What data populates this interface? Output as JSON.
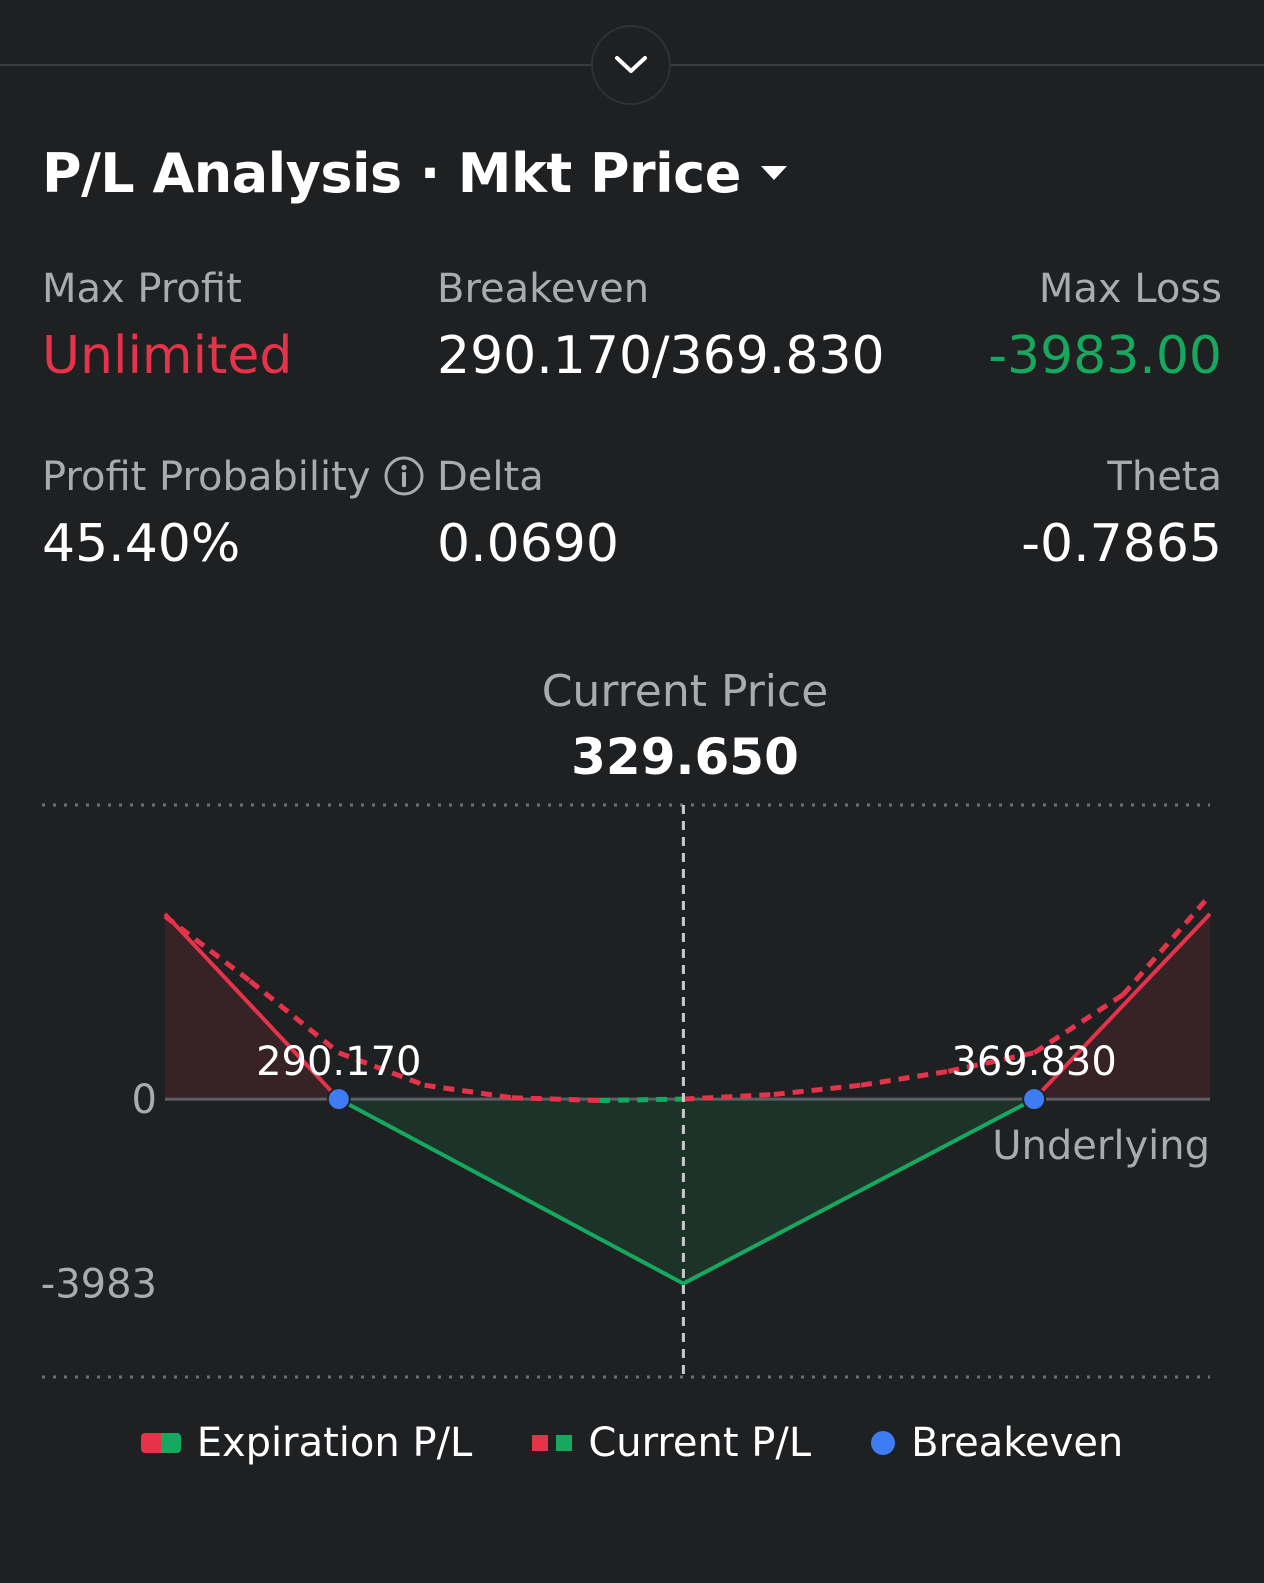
{
  "header": {
    "title": "P/L Analysis",
    "separator": "·",
    "mode": "Mkt Price"
  },
  "stats": {
    "max_profit": {
      "label": "Max Profit",
      "value": "Unlimited"
    },
    "breakeven": {
      "label": "Breakeven",
      "value": "290.170/369.830"
    },
    "max_loss": {
      "label": "Max Loss",
      "value": "-3983.00"
    },
    "profit_probability": {
      "label": "Profit Probability",
      "value": "45.40%"
    },
    "delta": {
      "label": "Delta",
      "value": "0.0690"
    },
    "theta": {
      "label": "Theta",
      "value": "-0.7865"
    }
  },
  "current_price": {
    "label": "Current Price",
    "value": "329.650"
  },
  "colors": {
    "profit": "#e5334a",
    "loss": "#16a85f",
    "breakeven": "#3d7cf5",
    "background": "#1f2022"
  },
  "chart_data": {
    "type": "line",
    "y_ticks": [
      "0",
      "-3983"
    ],
    "x_axis_label": "Underlying",
    "current_price": 329.65,
    "breakeven_labels": [
      "290.170",
      "369.830"
    ],
    "series": [
      {
        "name": "Expiration P/L",
        "x": [
          270.26,
          290.17,
          329.65,
          369.83,
          389.98
        ],
        "y": [
          4000,
          0,
          -3983,
          0,
          4000
        ]
      },
      {
        "name": "Current P/L",
        "x": [
          270.26,
          280.0,
          290.17,
          300.0,
          310.0,
          320.0,
          329.65,
          340.0,
          350.0,
          360.0,
          369.83,
          380.0,
          389.98
        ],
        "y": [
          3950,
          2550,
          1000,
          300,
          30,
          -30,
          0,
          100,
          300,
          600,
          1000,
          2250,
          4400
        ]
      }
    ],
    "breakevens": [
      290.17,
      369.83
    ],
    "xlim": [
      270.26,
      389.98
    ],
    "ylim": [
      -6000,
      6350
    ]
  },
  "legend": {
    "expiration": "Expiration P/L",
    "current": "Current P/L",
    "breakeven": "Breakeven"
  }
}
